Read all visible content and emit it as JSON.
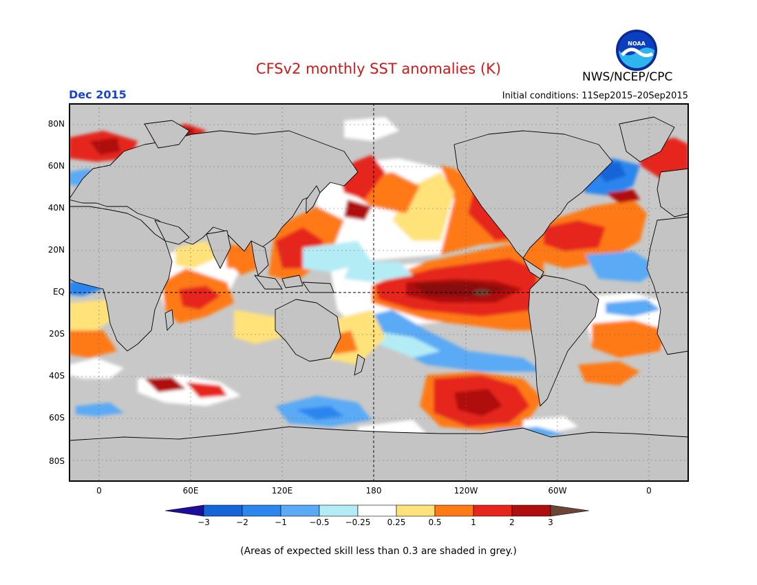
{
  "title": "CFSv2 monthly SST anomalies (K)",
  "agency": "NWS/NCEP/CPC",
  "logo_text": "NOAA",
  "valid_month": "Dec 2015",
  "initial_conditions": "Initial conditions: 11Sep2015–20Sep2015",
  "lat_labels": [
    "80N",
    "60N",
    "40N",
    "20N",
    "EQ",
    "20S",
    "40S",
    "60S",
    "80S"
  ],
  "lon_labels": [
    "0",
    "60E",
    "120E",
    "180",
    "120W",
    "60W",
    "0"
  ],
  "colorbar": {
    "labels": [
      "−3",
      "−2",
      "−1",
      "−0.5",
      "−0.25",
      "0.25",
      "0.5",
      "1",
      "2",
      "3"
    ],
    "colors": [
      "#1c0d9c",
      "#1565d8",
      "#2b86ee",
      "#5aaaf5",
      "#b4ecf5",
      "#ffffff",
      "#ffe27a",
      "#ff7a14",
      "#e6261c",
      "#b00e0e",
      "#6b4535"
    ]
  },
  "map_colors": {
    "land": "#c4c4c4",
    "grey": "#c8c8c8",
    "coast": "#000000"
  },
  "footnote": "(Areas of expected skill less than 0.3 are shaded in grey.)"
}
